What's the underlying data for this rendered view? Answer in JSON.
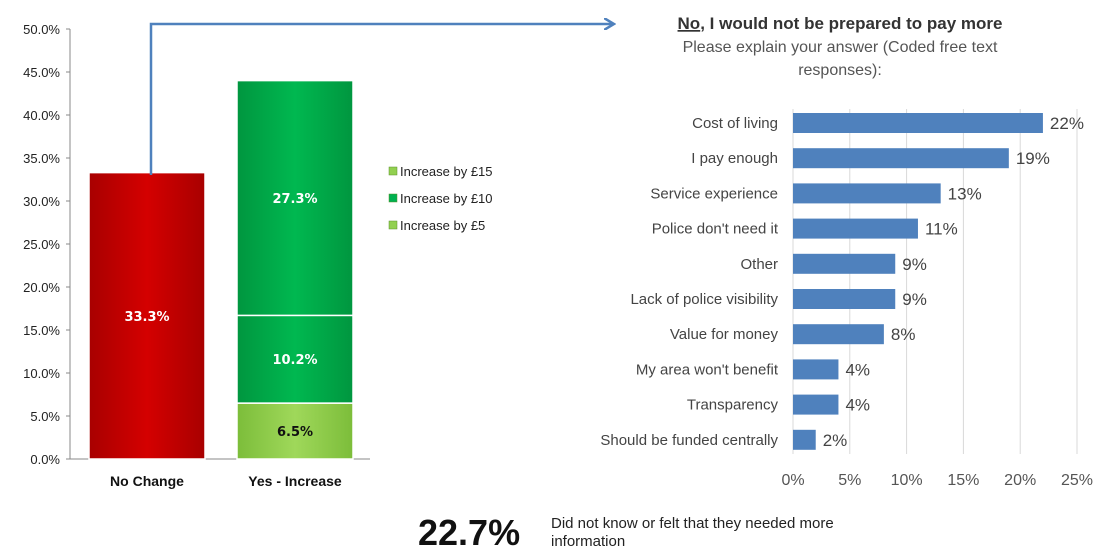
{
  "chart_data": [
    {
      "type": "bar",
      "stacked": true,
      "categories": [
        "No Change",
        "Yes - Increase"
      ],
      "ylim": [
        0,
        50
      ],
      "y_ticks": [
        "0.0%",
        "5.0%",
        "10.0%",
        "15.0%",
        "20.0%",
        "25.0%",
        "30.0%",
        "35.0%",
        "40.0%",
        "45.0%",
        "50.0%"
      ],
      "series": [
        {
          "category": "No Change",
          "value": 33.3,
          "label": "33.3%",
          "color": "#cc0000"
        },
        {
          "name": "Increase by £5",
          "category": "Yes - Increase",
          "value": 6.5,
          "label": "6.5%",
          "color": "#92d050"
        },
        {
          "name": "Increase by £10",
          "category": "Yes - Increase",
          "value": 10.2,
          "label": "10.2%",
          "color": "#00b050"
        },
        {
          "name": "Increase by £15",
          "category": "Yes - Increase",
          "value": 27.3,
          "label": "27.3%",
          "color": "#00b050"
        }
      ],
      "legend": {
        "position": "right",
        "entries": [
          {
            "label": "Increase by £15",
            "color": "#92d050"
          },
          {
            "label": "Increase by £10",
            "color": "#00b050"
          },
          {
            "label": "Increase by £5",
            "color": "#92d050"
          }
        ]
      },
      "grid": false
    },
    {
      "type": "bar",
      "orientation": "horizontal",
      "header": {
        "underlined": "No",
        "rest": ", I would not be prepared to pay more",
        "line2": "Please explain your answer (Coded free text",
        "line3": "responses):"
      },
      "categories": [
        "Cost of living",
        "I pay enough",
        "Service experience",
        "Police don't need it",
        "Other",
        "Lack of police visibility",
        "Value for money",
        "My area won't benefit",
        "Transparency",
        "Should be funded centrally"
      ],
      "values": [
        22,
        19,
        13,
        11,
        9,
        9,
        8,
        4,
        4,
        2
      ],
      "labels": [
        "22%",
        "19%",
        "13%",
        "11%",
        "9%",
        "9%",
        "8%",
        "4%",
        "4%",
        "2%"
      ],
      "xlim": [
        0,
        25
      ],
      "x_ticks": [
        "0%",
        "5%",
        "10%",
        "15%",
        "20%",
        "25%"
      ],
      "color": "#4f81bd",
      "grid": true
    }
  ],
  "footer": {
    "big_value": "22.7%",
    "note": "Did not know or felt that they needed more information"
  },
  "colors": {
    "arrow": "#4f81bd",
    "no_change": "#cc0000",
    "green_dark": "#00b050",
    "green_light": "#92d050",
    "blue_bar": "#4f81bd"
  }
}
